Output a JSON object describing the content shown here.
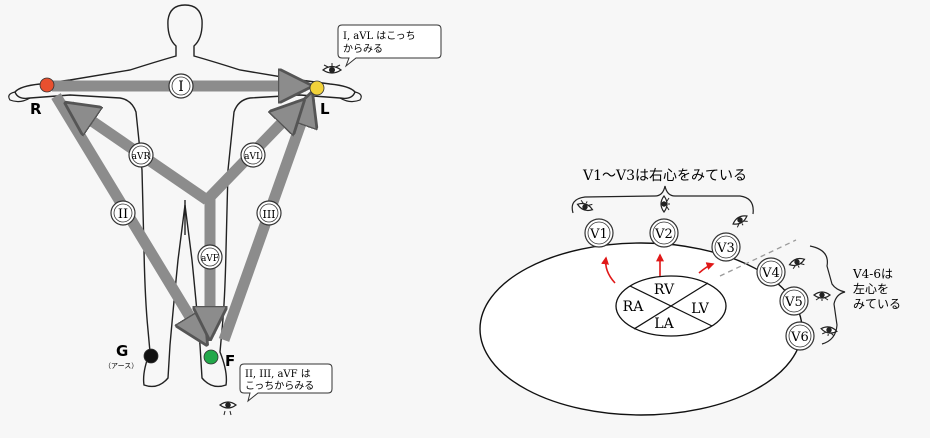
{
  "limb_diagram": {
    "electrodes": {
      "R": {
        "label": "R",
        "color": "#e8502f"
      },
      "L": {
        "label": "L",
        "color": "#f2d23a"
      },
      "F": {
        "label": "F",
        "color": "#22a84a"
      },
      "G": {
        "label": "G",
        "sub": "（アース）",
        "color": "#111111"
      }
    },
    "leads": {
      "I": "I",
      "II": "II",
      "III": "III",
      "aVR": "aVR",
      "aVL": "aVL",
      "aVF": "aVF"
    },
    "callout_top": {
      "line1": "I, aVL はこっち",
      "line2": "からみる"
    },
    "callout_bottom": {
      "line1": "II, III, aVF は",
      "line2": "こっちからみる"
    }
  },
  "chest_diagram": {
    "chambers": {
      "RV": "RV",
      "RA": "RA",
      "LV": "LV",
      "LA": "LA"
    },
    "leads": {
      "V1": "V1",
      "V2": "V2",
      "V3": "V3",
      "V4": "V4",
      "V5": "V5",
      "V6": "V6"
    },
    "right_heart_label": "V1～V3は右心をみている",
    "left_heart_label": {
      "line1": "V4-6は",
      "line2": "左心を",
      "line3": "みている"
    }
  },
  "colors": {
    "arrow_gray": "#8c8c8c",
    "arrow_edge": "#555555",
    "red_arrow": "#e01818",
    "dashed": "#9a9a9a"
  },
  "icons": [
    "eye-icon",
    "body-outline"
  ]
}
